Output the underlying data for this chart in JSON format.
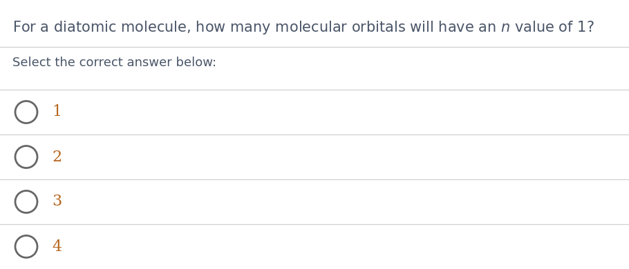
{
  "question_pre": "For a diatomic molecule, how many molecular orbitals will have an ",
  "question_n": "n",
  "question_post": " value of 1?",
  "subheading": "Select the correct answer below:",
  "options": [
    "1",
    "2",
    "3",
    "4"
  ],
  "bg_color": "#ffffff",
  "question_color": "#4a5568",
  "subheading_color": "#4a5568",
  "option_color": "#b5651d",
  "line_color": "#d0d0d0",
  "circle_color": "#666666",
  "question_fontsize": 15,
  "subheading_fontsize": 13,
  "option_fontsize": 16
}
